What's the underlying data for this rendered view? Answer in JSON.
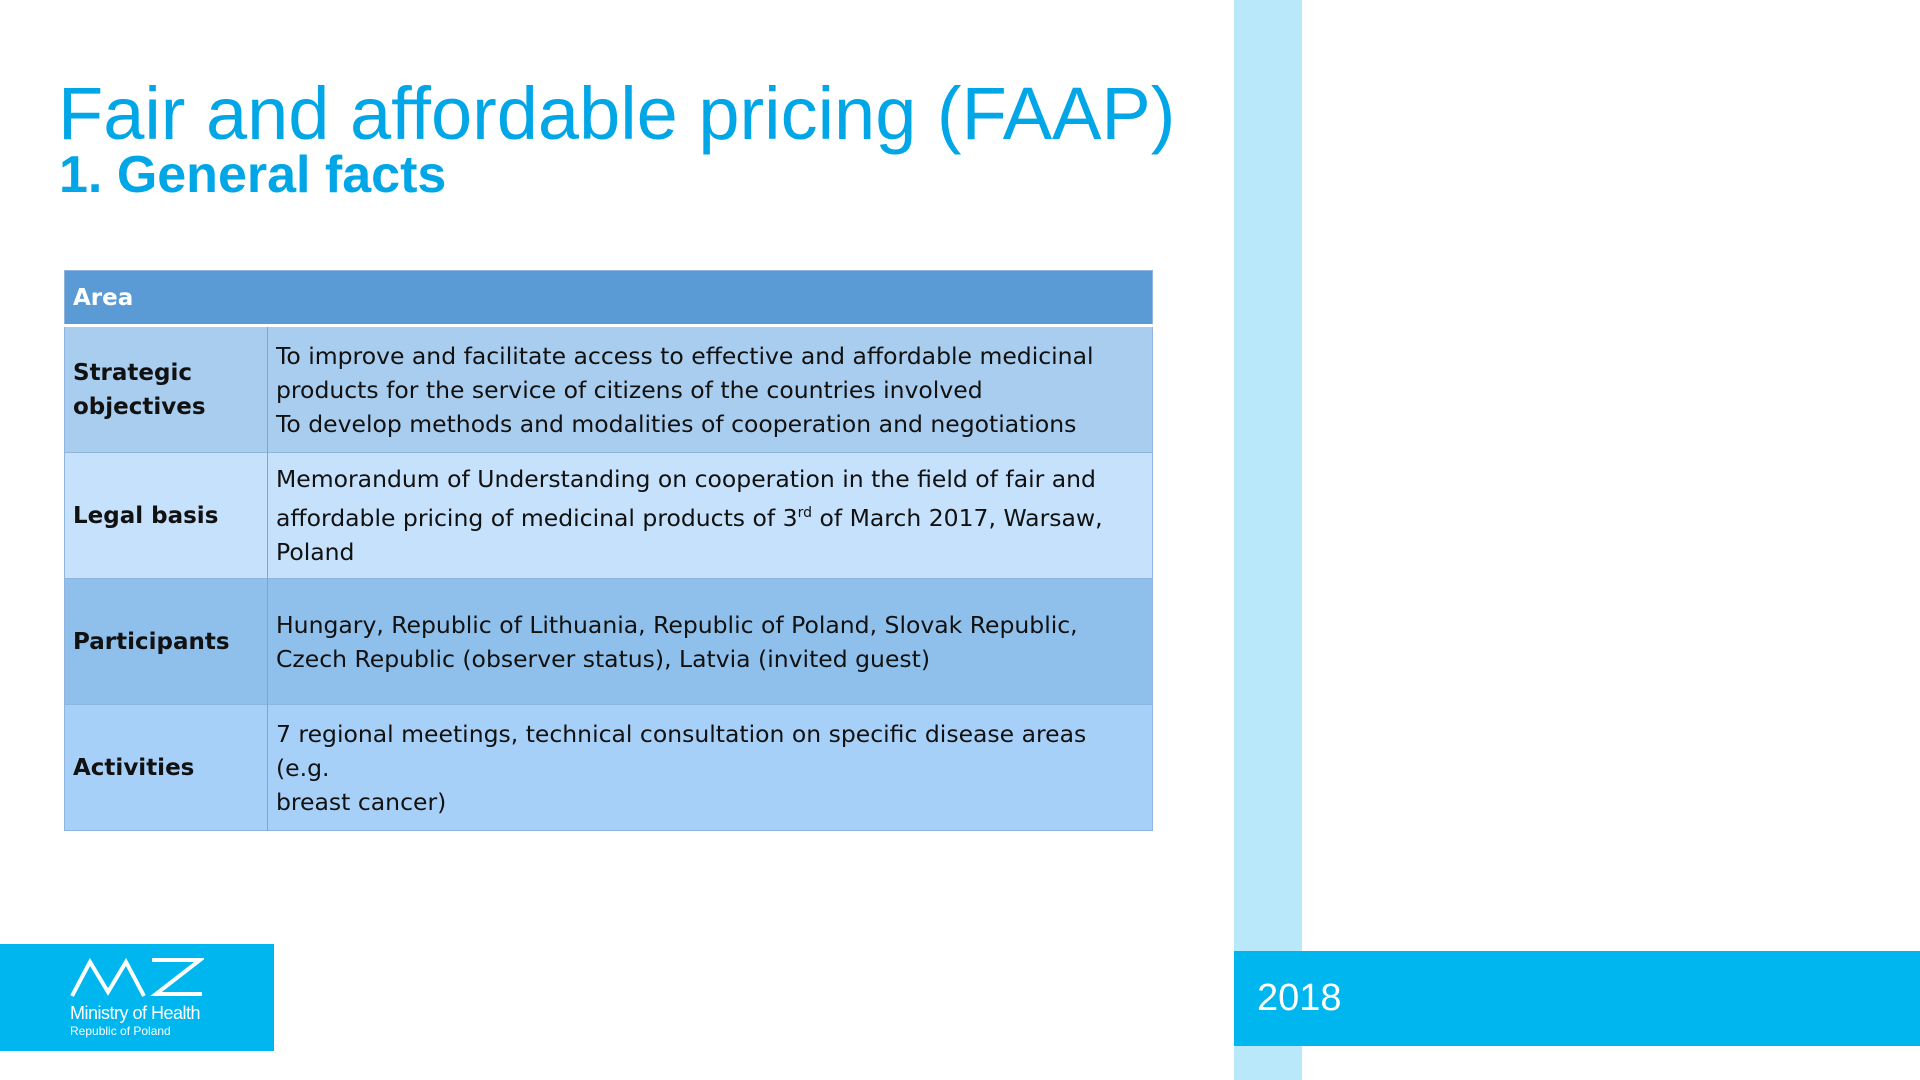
{
  "title": "Fair and affordable pricing (FAAP)",
  "subtitle": "1. General facts",
  "table": {
    "header": "Area",
    "rows": [
      {
        "label": "Strategic objectives",
        "lines": [
          "To improve and facilitate access to effective and affordable medicinal",
          "products for the service of citizens of the countries involved",
          "To develop methods and modalities of cooperation and negotiations"
        ]
      },
      {
        "label": "Legal basis",
        "lines": [
          "Memorandum of Understanding on cooperation in the field of fair and",
          "affordable pricing of medicinal products of 3",
          "rd",
          " of March 2017, Warsaw,",
          "Poland"
        ]
      },
      {
        "label": "Participants",
        "lines": [
          "Hungary, Republic of Lithuania, Republic of Poland, Slovak Republic,",
          "Czech Republic (observer status), Latvia (invited guest)"
        ]
      },
      {
        "label": "Activities",
        "lines": [
          "7 regional meetings, technical consultation on specific disease areas (e.g.",
          "breast cancer)"
        ]
      }
    ]
  },
  "logo": {
    "icon": "ministry-of-health-logo",
    "name": "Ministry of Health",
    "sub": "Republic of Poland"
  },
  "year": "2018",
  "colors": {
    "accent": "#00a6e6",
    "band": "#00b6ee",
    "stripe": "#b8e8fa",
    "table_header": "#5b9bd5"
  }
}
